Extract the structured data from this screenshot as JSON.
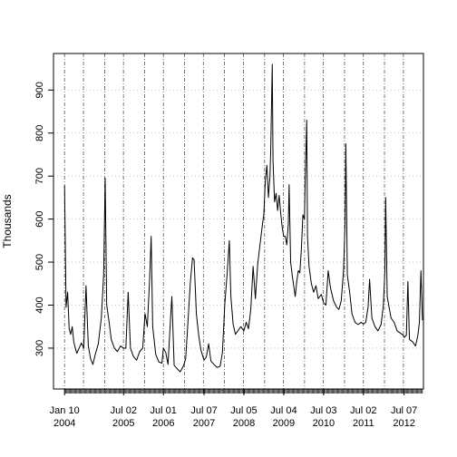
{
  "chart_data": {
    "type": "line",
    "ylabel": "Thousands",
    "xlabel": "",
    "title": "",
    "xlim": [
      "2003-10-01",
      "2012-12-31"
    ],
    "ylim": [
      205,
      985
    ],
    "yticks": [
      300,
      400,
      500,
      600,
      700,
      800,
      900
    ],
    "grid": true,
    "colors": {
      "line": "#000000",
      "grid": "#b8b8b8",
      "vgrid": "#555555"
    },
    "xticks": [
      {
        "date": "2004-01-10",
        "line1": "Jan 10",
        "line2": "2004"
      },
      {
        "date": "2005-07-02",
        "line1": "Jul 02",
        "line2": "2005"
      },
      {
        "date": "2006-07-01",
        "line1": "Jul 01",
        "line2": "2006"
      },
      {
        "date": "2007-07-07",
        "line1": "Jul 07",
        "line2": "2007"
      },
      {
        "date": "2008-07-05",
        "line1": "Jul 05",
        "line2": "2008"
      },
      {
        "date": "2009-07-04",
        "line1": "Jul 04",
        "line2": "2009"
      },
      {
        "date": "2010-07-03",
        "line1": "Jul 03",
        "line2": "2010"
      },
      {
        "date": "2011-07-02",
        "line1": "Jul 02",
        "line2": "2011"
      },
      {
        "date": "2012-07-07",
        "line1": "Jul 07",
        "line2": "2012"
      }
    ],
    "series": [
      {
        "points": [
          [
            "2004-01-10",
            678
          ],
          [
            "2004-01-24",
            395
          ],
          [
            "2004-02-07",
            430
          ],
          [
            "2004-02-21",
            345
          ],
          [
            "2004-03-06",
            332
          ],
          [
            "2004-03-20",
            350
          ],
          [
            "2004-04-03",
            315
          ],
          [
            "2004-04-17",
            300
          ],
          [
            "2004-05-01",
            288
          ],
          [
            "2004-05-22",
            300
          ],
          [
            "2004-06-12",
            312
          ],
          [
            "2004-07-03",
            300
          ],
          [
            "2004-07-24",
            445
          ],
          [
            "2004-08-14",
            305
          ],
          [
            "2004-09-04",
            275
          ],
          [
            "2004-09-25",
            262
          ],
          [
            "2004-10-16",
            285
          ],
          [
            "2004-11-13",
            310
          ],
          [
            "2004-12-11",
            370
          ],
          [
            "2005-01-01",
            470
          ],
          [
            "2005-01-15",
            695
          ],
          [
            "2005-01-29",
            400
          ],
          [
            "2005-02-19",
            362
          ],
          [
            "2005-03-12",
            320
          ],
          [
            "2005-04-09",
            300
          ],
          [
            "2005-05-07",
            292
          ],
          [
            "2005-06-04",
            305
          ],
          [
            "2005-07-02",
            300
          ],
          [
            "2005-07-23",
            300
          ],
          [
            "2005-08-13",
            430
          ],
          [
            "2005-09-03",
            300
          ],
          [
            "2005-10-01",
            280
          ],
          [
            "2005-10-29",
            272
          ],
          [
            "2005-11-26",
            292
          ],
          [
            "2005-12-24",
            300
          ],
          [
            "2006-01-14",
            380
          ],
          [
            "2006-02-04",
            350
          ],
          [
            "2006-02-25",
            460
          ],
          [
            "2006-03-11",
            560
          ],
          [
            "2006-03-25",
            350
          ],
          [
            "2006-04-22",
            285
          ],
          [
            "2006-05-20",
            268
          ],
          [
            "2006-06-17",
            265
          ],
          [
            "2006-07-01",
            300
          ],
          [
            "2006-07-22",
            290
          ],
          [
            "2006-08-12",
            262
          ],
          [
            "2006-09-02",
            360
          ],
          [
            "2006-09-16",
            420
          ],
          [
            "2006-10-07",
            260
          ],
          [
            "2006-11-04",
            252
          ],
          [
            "2006-12-02",
            245
          ],
          [
            "2006-12-30",
            258
          ],
          [
            "2007-01-20",
            275
          ],
          [
            "2007-02-10",
            360
          ],
          [
            "2007-03-03",
            450
          ],
          [
            "2007-03-24",
            510
          ],
          [
            "2007-04-07",
            505
          ],
          [
            "2007-04-28",
            380
          ],
          [
            "2007-05-19",
            330
          ],
          [
            "2007-06-09",
            295
          ],
          [
            "2007-07-07",
            272
          ],
          [
            "2007-07-28",
            280
          ],
          [
            "2007-08-18",
            310
          ],
          [
            "2007-09-08",
            270
          ],
          [
            "2007-10-06",
            262
          ],
          [
            "2007-11-03",
            255
          ],
          [
            "2007-12-01",
            258
          ],
          [
            "2007-12-22",
            290
          ],
          [
            "2008-01-12",
            400
          ],
          [
            "2008-02-02",
            470
          ],
          [
            "2008-02-23",
            550
          ],
          [
            "2008-03-08",
            420
          ],
          [
            "2008-03-29",
            355
          ],
          [
            "2008-04-19",
            332
          ],
          [
            "2008-05-10",
            340
          ],
          [
            "2008-06-07",
            350
          ],
          [
            "2008-07-05",
            340
          ],
          [
            "2008-07-26",
            360
          ],
          [
            "2008-08-16",
            345
          ],
          [
            "2008-09-06",
            390
          ],
          [
            "2008-09-27",
            490
          ],
          [
            "2008-10-18",
            415
          ],
          [
            "2008-11-08",
            495
          ],
          [
            "2008-11-29",
            540
          ],
          [
            "2008-12-20",
            585
          ],
          [
            "2009-01-03",
            610
          ],
          [
            "2009-01-17",
            690
          ],
          [
            "2009-01-31",
            725
          ],
          [
            "2009-02-14",
            650
          ],
          [
            "2009-02-28",
            700
          ],
          [
            "2009-03-07",
            760
          ],
          [
            "2009-03-21",
            960
          ],
          [
            "2009-03-28",
            735
          ],
          [
            "2009-04-11",
            640
          ],
          [
            "2009-04-25",
            660
          ],
          [
            "2009-05-09",
            620
          ],
          [
            "2009-05-23",
            655
          ],
          [
            "2009-06-06",
            615
          ],
          [
            "2009-06-20",
            580
          ],
          [
            "2009-07-04",
            560
          ],
          [
            "2009-07-18",
            560
          ],
          [
            "2009-08-01",
            540
          ],
          [
            "2009-08-15",
            590
          ],
          [
            "2009-08-22",
            680
          ],
          [
            "2009-09-05",
            500
          ],
          [
            "2009-09-19",
            470
          ],
          [
            "2009-10-03",
            445
          ],
          [
            "2009-10-17",
            420
          ],
          [
            "2009-10-31",
            455
          ],
          [
            "2009-11-14",
            480
          ],
          [
            "2009-11-28",
            475
          ],
          [
            "2009-12-12",
            530
          ],
          [
            "2009-12-26",
            610
          ],
          [
            "2010-01-09",
            600
          ],
          [
            "2010-01-16",
            690
          ],
          [
            "2010-01-30",
            830
          ],
          [
            "2010-02-06",
            560
          ],
          [
            "2010-02-20",
            490
          ],
          [
            "2010-03-13",
            450
          ],
          [
            "2010-04-03",
            430
          ],
          [
            "2010-04-24",
            445
          ],
          [
            "2010-05-15",
            415
          ],
          [
            "2010-06-12",
            425
          ],
          [
            "2010-07-03",
            405
          ],
          [
            "2010-07-24",
            400
          ],
          [
            "2010-08-14",
            480
          ],
          [
            "2010-09-04",
            440
          ],
          [
            "2010-10-02",
            410
          ],
          [
            "2010-10-30",
            395
          ],
          [
            "2010-11-20",
            390
          ],
          [
            "2010-12-11",
            410
          ],
          [
            "2011-01-01",
            480
          ],
          [
            "2011-01-15",
            590
          ],
          [
            "2011-01-22",
            775
          ],
          [
            "2011-02-05",
            470
          ],
          [
            "2011-02-26",
            430
          ],
          [
            "2011-03-19",
            380
          ],
          [
            "2011-04-16",
            360
          ],
          [
            "2011-05-14",
            355
          ],
          [
            "2011-06-11",
            360
          ],
          [
            "2011-07-02",
            356
          ],
          [
            "2011-07-23",
            360
          ],
          [
            "2011-08-13",
            395
          ],
          [
            "2011-08-27",
            460
          ],
          [
            "2011-09-17",
            370
          ],
          [
            "2011-10-15",
            350
          ],
          [
            "2011-11-12",
            340
          ],
          [
            "2011-12-10",
            355
          ],
          [
            "2011-12-31",
            400
          ],
          [
            "2012-01-14",
            480
          ],
          [
            "2012-01-21",
            650
          ],
          [
            "2012-02-04",
            420
          ],
          [
            "2012-02-18",
            400
          ],
          [
            "2012-03-10",
            370
          ],
          [
            "2012-04-07",
            360
          ],
          [
            "2012-05-05",
            340
          ],
          [
            "2012-06-02",
            335
          ],
          [
            "2012-06-30",
            330
          ],
          [
            "2012-07-07",
            325
          ],
          [
            "2012-07-28",
            330
          ],
          [
            "2012-08-11",
            455
          ],
          [
            "2012-08-25",
            320
          ],
          [
            "2012-09-22",
            315
          ],
          [
            "2012-10-20",
            305
          ],
          [
            "2012-11-10",
            330
          ],
          [
            "2012-11-24",
            360
          ],
          [
            "2012-12-08",
            480
          ],
          [
            "2012-12-22",
            365
          ]
        ]
      }
    ]
  }
}
